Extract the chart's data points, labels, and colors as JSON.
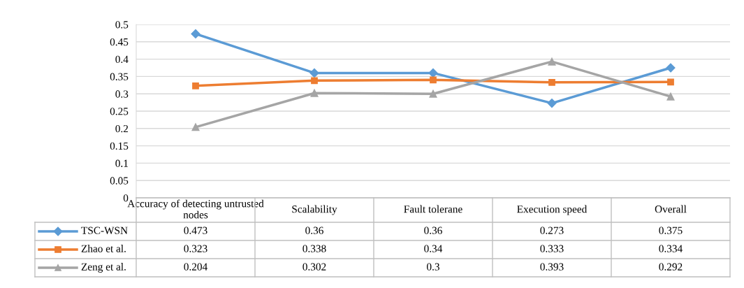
{
  "chart_data": {
    "type": "line",
    "categories": [
      "Accuracy of detecting untrusted nodes",
      "Scalability",
      "Fault tolerane",
      "Execution speed",
      "Overall"
    ],
    "series": [
      {
        "name": "TSC-WSN",
        "color": "#5b9bd5",
        "marker": "diamond",
        "values": [
          0.473,
          0.36,
          0.36,
          0.273,
          0.375
        ]
      },
      {
        "name": "Zhao et al.",
        "color": "#ed7d31",
        "marker": "square",
        "values": [
          0.323,
          0.338,
          0.34,
          0.333,
          0.334
        ]
      },
      {
        "name": "Zeng et al.",
        "color": "#a5a5a5",
        "marker": "triangle",
        "values": [
          0.204,
          0.302,
          0.3,
          0.393,
          0.292
        ]
      }
    ],
    "ylim": [
      0,
      0.5
    ],
    "yticks": [
      0,
      0.05,
      0.1,
      0.15,
      0.2,
      0.25,
      0.3,
      0.35,
      0.4,
      0.45,
      0.5
    ],
    "grid": "y",
    "data_labels": true,
    "legend": "bottom left",
    "line_style": "solid"
  }
}
